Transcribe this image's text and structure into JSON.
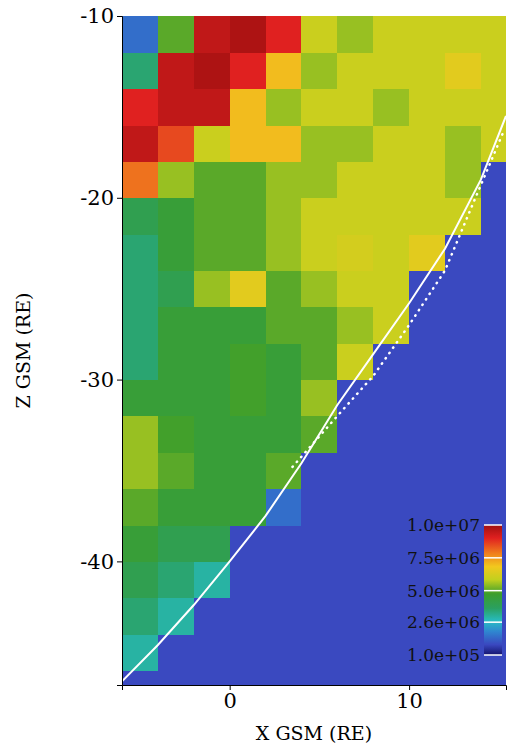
{
  "chart_data": {
    "type": "heatmap",
    "xlabel": "X GSM (RE)",
    "ylabel": "Z GSM (RE)",
    "xlim": [
      -6,
      15.4
    ],
    "ylim": [
      -46.8,
      -10
    ],
    "xticks": [
      0,
      10
    ],
    "yticks": [
      -10,
      -20,
      -30,
      -40
    ],
    "x": [
      -6,
      -4,
      -2,
      0,
      2,
      4,
      6,
      8,
      10,
      12,
      14,
      16
    ],
    "y": [
      -48,
      -46,
      -44,
      -42,
      -40,
      -38,
      -36,
      -34,
      -32,
      -30,
      -28,
      -26,
      -24,
      -22,
      -20,
      -18,
      -16,
      -14,
      -12,
      -10
    ],
    "values": [
      [
        900000,
        900000,
        900000,
        900000,
        900000,
        900000,
        900000,
        900000,
        900000,
        900000,
        900000
      ],
      [
        3000000,
        900000,
        900000,
        900000,
        900000,
        900000,
        900000,
        900000,
        900000,
        900000,
        900000
      ],
      [
        3500000,
        3000000,
        900000,
        900000,
        900000,
        900000,
        900000,
        900000,
        900000,
        900000,
        900000
      ],
      [
        4000000,
        3500000,
        3000000,
        900000,
        900000,
        900000,
        900000,
        900000,
        900000,
        900000,
        900000
      ],
      [
        4500000,
        4000000,
        4000000,
        900000,
        900000,
        900000,
        900000,
        900000,
        900000,
        900000,
        900000
      ],
      [
        5000000,
        4500000,
        4500000,
        4500000,
        1500000,
        900000,
        900000,
        900000,
        900000,
        900000,
        900000
      ],
      [
        5500000,
        5000000,
        4500000,
        4500000,
        5000000,
        900000,
        900000,
        900000,
        900000,
        900000,
        900000
      ],
      [
        5500000,
        4800000,
        4500000,
        4500000,
        4500000,
        5000000,
        900000,
        900000,
        900000,
        900000,
        900000
      ],
      [
        4500000,
        4500000,
        4500000,
        4800000,
        4500000,
        5500000,
        900000,
        900000,
        900000,
        900000,
        900000
      ],
      [
        3500000,
        4500000,
        4500000,
        4800000,
        4500000,
        5000000,
        6000000,
        900000,
        900000,
        900000,
        900000
      ],
      [
        3500000,
        4500000,
        4500000,
        4500000,
        5000000,
        5000000,
        5500000,
        6000000,
        900000,
        900000,
        900000
      ],
      [
        3500000,
        4000000,
        5500000,
        6500000,
        5000000,
        5500000,
        6000000,
        6000000,
        900000,
        900000,
        900000
      ],
      [
        3500000,
        4500000,
        5000000,
        5000000,
        5500000,
        6000000,
        6200000,
        6000000,
        6500000,
        900000,
        900000
      ],
      [
        4000000,
        4500000,
        5000000,
        5000000,
        5500000,
        6000000,
        6000000,
        6000000,
        6000000,
        6000000,
        900000
      ],
      [
        8000000,
        5500000,
        5000000,
        5000000,
        5500000,
        5500000,
        6000000,
        6000000,
        6000000,
        5500000,
        900000
      ],
      [
        9500000,
        8500000,
        6000000,
        7000000,
        7000000,
        5500000,
        5500000,
        6000000,
        6000000,
        5500000,
        6000000
      ],
      [
        9000000,
        9500000,
        9500000,
        7000000,
        5500000,
        6000000,
        6000000,
        5500000,
        6000000,
        6000000,
        6000000
      ],
      [
        3500000,
        9500000,
        9800000,
        9000000,
        7000000,
        5500000,
        6000000,
        6000000,
        6000000,
        6500000,
        6000000
      ],
      [
        1500000,
        5000000,
        9500000,
        9800000,
        9000000,
        6000000,
        5500000,
        6000000,
        6000000,
        6000000,
        6000000
      ]
    ],
    "colorbar": {
      "lim": [
        100000,
        10000000
      ],
      "ticks": [
        {
          "value": 10000000,
          "label": "1.0e+07"
        },
        {
          "value": 7500000,
          "label": "7.5e+06"
        },
        {
          "value": 5000000,
          "label": "5.0e+06"
        },
        {
          "value": 2600000,
          "label": "2.6e+06"
        },
        {
          "value": 100000,
          "label": "1.0e+05"
        }
      ]
    },
    "series": [
      {
        "type": "line",
        "line_style": "solid",
        "color": "#ffffff",
        "x": [
          -6,
          -4,
          -2,
          0,
          2,
          4,
          6,
          8,
          10,
          12,
          14,
          15.4
        ],
        "values": [
          -46.6,
          -44.6,
          -42.4,
          -40,
          -37.5,
          -34.6,
          -31.4,
          -28.6,
          -25.8,
          -22.8,
          -19,
          -15.5
        ]
      },
      {
        "type": "line",
        "line_style": "dotted",
        "color": "#ffffff",
        "x": [
          3.5,
          6,
          8,
          10,
          12,
          13.7,
          15.2
        ],
        "values": [
          -34.8,
          -32,
          -29.8,
          -27,
          -24,
          -20,
          -16.5
        ]
      }
    ]
  }
}
